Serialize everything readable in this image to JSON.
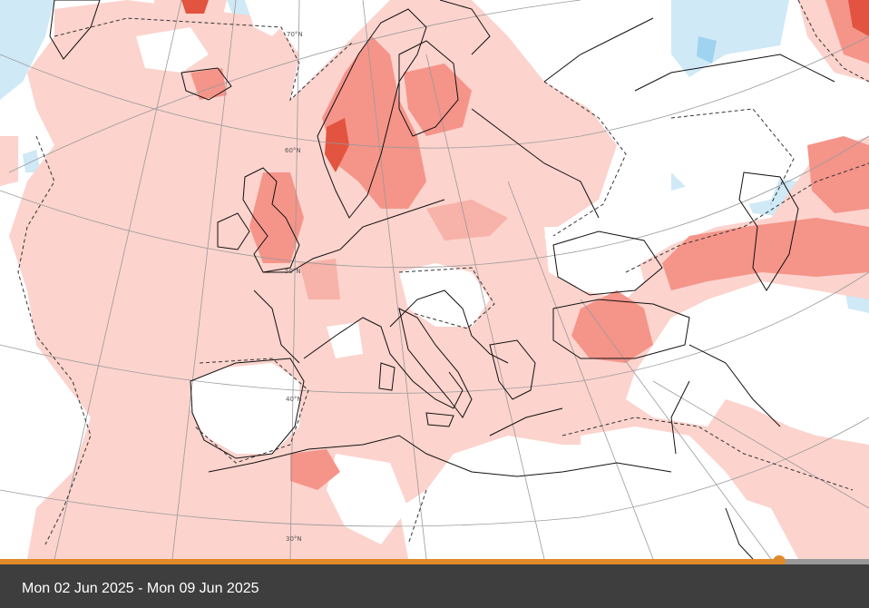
{
  "map": {
    "lat_labels": [
      "70°N",
      "60°N",
      "50°N",
      "40°N",
      "30°N"
    ]
  },
  "timeline": {
    "position_fraction": 0.897,
    "accent_color": "#e0892a",
    "track_color": "#999999"
  },
  "caption": {
    "date_range": "Mon 02 Jun 2025 - Mon 09 Jun 2025"
  },
  "colors": {
    "anomaly_light_warm": "#fcd3cd",
    "anomaly_mid_warm": "#f59489",
    "anomaly_strong_warm": "#e2543f",
    "anomaly_light_cool": "#cfe9f6",
    "anomaly_mid_cool": "#9fd3ef",
    "neutral": "#ffffff",
    "caption_bg": "#3e3e3e"
  }
}
